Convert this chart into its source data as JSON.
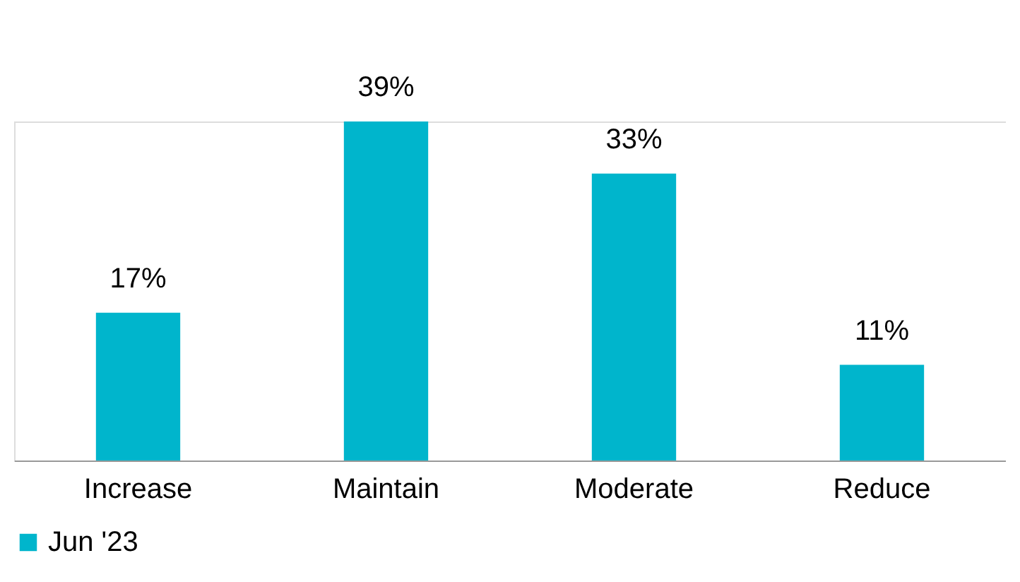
{
  "chart_data": {
    "type": "bar",
    "categories": [
      "Increase",
      "Maintain",
      "Moderate",
      "Reduce"
    ],
    "series": [
      {
        "name": "Jun '23",
        "color": "#00b5cc",
        "values": [
          17,
          39,
          33,
          11
        ],
        "value_labels": [
          "17%",
          "39%",
          "33%",
          "11%"
        ]
      }
    ],
    "legend": "bottom",
    "tick_labels": "x"
  }
}
